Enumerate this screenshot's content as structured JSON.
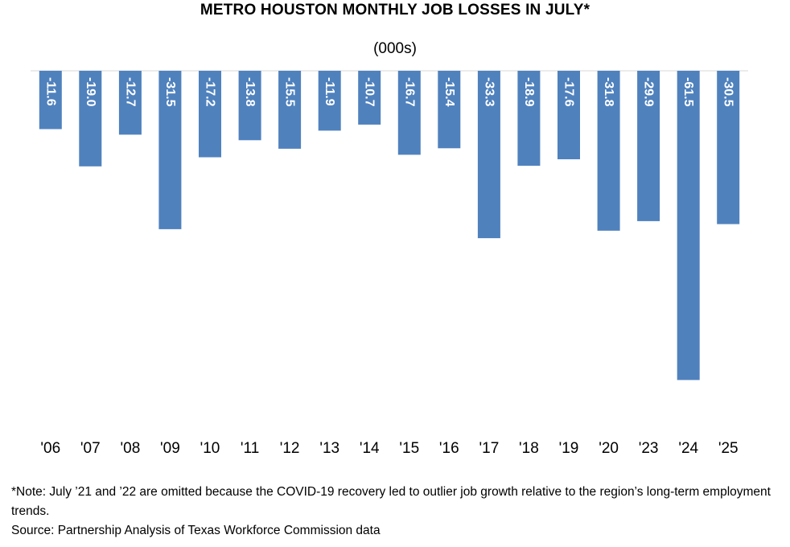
{
  "chart_data": {
    "type": "bar",
    "title": "METRO HOUSTON MONTHLY JOB LOSSES IN JULY*",
    "subtitle": "(000s)",
    "categories": [
      "'06",
      "'07",
      "'08",
      "'09",
      "'10",
      "'11",
      "'12",
      "'13",
      "'14",
      "'15",
      "'16",
      "'17",
      "'18",
      "'19",
      "'20",
      "'23",
      "'24",
      "'25"
    ],
    "values": [
      -11.6,
      -19.0,
      -12.7,
      -31.5,
      -17.2,
      -13.8,
      -15.5,
      -11.9,
      -10.7,
      -16.7,
      -15.4,
      -33.3,
      -18.9,
      -17.6,
      -31.8,
      -29.9,
      -61.5,
      -30.5
    ],
    "data_labels": [
      "-11.6",
      "-19.0",
      "-12.7",
      "-31.5",
      "-17.2",
      "-13.8",
      "-15.5",
      "-11.9",
      "-10.7",
      "-16.7",
      "-15.4",
      "-33.3",
      "-18.9",
      "-17.6",
      "-31.8",
      "-29.9",
      "-61.5",
      "-30.5"
    ],
    "ylim": [
      -70,
      0
    ],
    "bar_color": "#4F81BD",
    "label_color": "#FFFFFF",
    "grid": false,
    "legend": "none"
  },
  "footnote": {
    "note": "*Note: July ’21 and ’22 are omitted because the COVID-19 recovery led to outlier job growth relative to the region’s long-term employment trends.",
    "source": "Source: Partnership Analysis of Texas Workforce Commission data"
  }
}
